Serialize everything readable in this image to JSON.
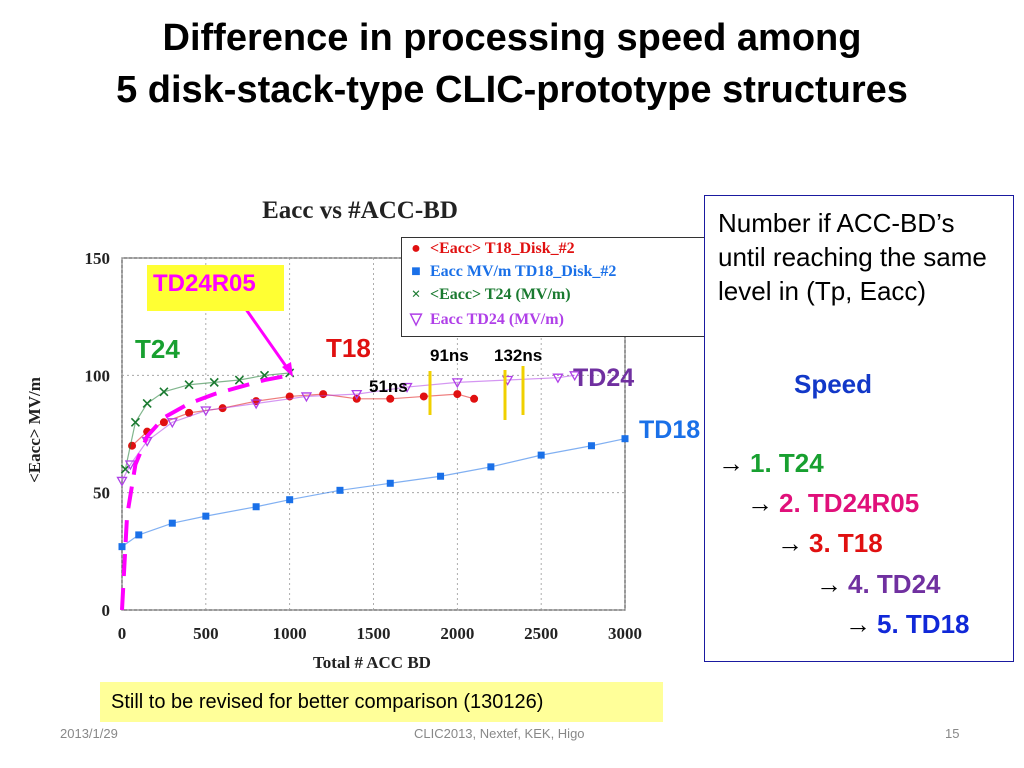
{
  "slide": {
    "title_line1": "Difference in processing speed among",
    "title_line2": "5 disk-stack-type CLIC-prototype structures",
    "footer_date": "2013/1/29",
    "footer_center": "CLIC2013, Nextef, KEK,  Higo",
    "page_number": "15",
    "note": "Still to be revised for better comparison (130126)"
  },
  "annotations": {
    "td24r05": "TD24R05",
    "t24": "T24",
    "t18": "T18",
    "td24": "TD24",
    "td18": "TD18",
    "ns91": "91ns",
    "ns132": "132ns",
    "ns51": "51ns"
  },
  "info": {
    "text": "Number if ACC-BD’s until reaching the same level in (Tp, Eacc)",
    "speed_label": "Speed",
    "arrow": "→",
    "ranking": [
      {
        "text": "1. T24",
        "color": "#18a030"
      },
      {
        "text": "2. TD24R05",
        "color": "#e0107a"
      },
      {
        "text": "3. T18",
        "color": "#e01010"
      },
      {
        "text": "4. TD24",
        "color": "#7030a0"
      },
      {
        "text": "5. TD18",
        "color": "#1028d8"
      }
    ]
  },
  "chart_data": {
    "type": "scatter",
    "title": "Eacc vs #ACC-BD",
    "xlabel": "Total # ACC BD",
    "ylabel": "<Eacc>  MV/m",
    "xlim": [
      0,
      3000
    ],
    "ylim": [
      0,
      150
    ],
    "x_ticks": [
      "0",
      "500",
      "1000",
      "1500",
      "2000",
      "2500",
      "3000"
    ],
    "y_ticks": [
      "0",
      "50",
      "100",
      "150"
    ],
    "grid": true,
    "legend_position": "top-right",
    "series": [
      {
        "name": "<Eacc>  T18_Disk_#2",
        "marker": "circle",
        "color": "#e01010",
        "x": [
          60,
          150,
          250,
          400,
          600,
          800,
          1000,
          1200,
          1400,
          1600,
          1800,
          2000,
          2100
        ],
        "y": [
          70,
          76,
          80,
          84,
          86,
          89,
          91,
          92,
          90,
          90,
          91,
          92,
          90
        ]
      },
      {
        "name": "Eacc MV/m  TD18_Disk_#2",
        "marker": "square",
        "color": "#1a70e8",
        "x": [
          0,
          100,
          300,
          500,
          800,
          1000,
          1300,
          1600,
          1900,
          2200,
          2500,
          2800,
          3000
        ],
        "y": [
          27,
          32,
          37,
          40,
          44,
          47,
          51,
          54,
          57,
          61,
          66,
          70,
          73
        ]
      },
      {
        "name": "<Eacc> T24 (MV/m)",
        "marker": "x",
        "color": "#1a7a30",
        "x": [
          20,
          80,
          150,
          250,
          400,
          550,
          700,
          850,
          1000
        ],
        "y": [
          60,
          80,
          88,
          93,
          96,
          97,
          98,
          100,
          101
        ]
      },
      {
        "name": "Eacc TD24 (MV/m)",
        "marker": "triangle-down",
        "color": "#b040e8",
        "x": [
          0,
          50,
          150,
          300,
          500,
          800,
          1100,
          1400,
          1700,
          2000,
          2300,
          2600,
          2700
        ],
        "y": [
          55,
          62,
          72,
          80,
          85,
          88,
          91,
          92,
          95,
          97,
          98,
          99,
          100
        ]
      },
      {
        "name": "",
        "marker": "dashed-line",
        "color": "#ff00ff",
        "x": [
          0,
          30,
          80,
          150,
          250,
          400,
          550,
          700,
          850,
          1000
        ],
        "y": [
          0,
          40,
          62,
          74,
          82,
          88,
          92,
          95,
          98,
          100
        ]
      }
    ]
  },
  "colors": {
    "t18": "#e01010",
    "td18": "#1a70e8",
    "t24": "#1a7a30",
    "td24": "#b040e8",
    "td24_label": "#7030a0",
    "td24r05": "#ff00ff",
    "highlight": "#ffff33"
  }
}
